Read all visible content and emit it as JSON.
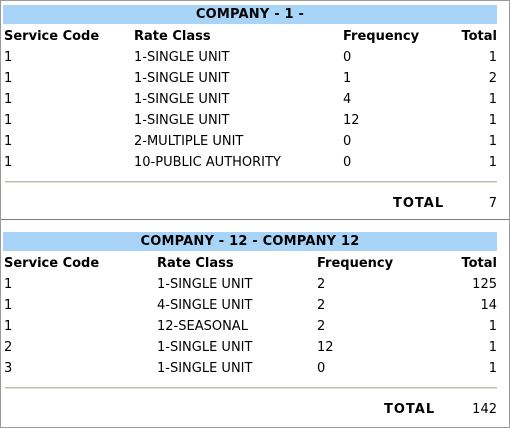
{
  "sections": [
    {
      "title": "COMPANY - 1 -",
      "columns": [
        "Service Code",
        "Rate Class",
        "Frequency",
        "Total"
      ],
      "rows": [
        [
          "1",
          "1-SINGLE UNIT",
          "0",
          "1"
        ],
        [
          "1",
          "1-SINGLE UNIT",
          "1",
          "2"
        ],
        [
          "1",
          "1-SINGLE UNIT",
          "4",
          "1"
        ],
        [
          "1",
          "1-SINGLE UNIT",
          "12",
          "1"
        ],
        [
          "1",
          "2-MULTIPLE UNIT",
          "0",
          "1"
        ],
        [
          "1",
          "10-PUBLIC AUTHORITY",
          "0",
          "1"
        ]
      ],
      "total_label": "TOTAL",
      "total_value": "7"
    },
    {
      "title": "COMPANY - 12 - COMPANY 12",
      "columns": [
        "Service Code",
        "Rate Class",
        "Frequency",
        "Total"
      ],
      "rows": [
        [
          "1",
          "1-SINGLE UNIT",
          "2",
          "125"
        ],
        [
          "1",
          "4-SINGLE UNIT",
          "2",
          "14"
        ],
        [
          "1",
          "12-SEASONAL",
          "2",
          "1"
        ],
        [
          "2",
          "1-SINGLE UNIT",
          "12",
          "1"
        ],
        [
          "3",
          "1-SINGLE UNIT",
          "0",
          "1"
        ]
      ],
      "total_label": "TOTAL",
      "total_value": "142"
    }
  ]
}
